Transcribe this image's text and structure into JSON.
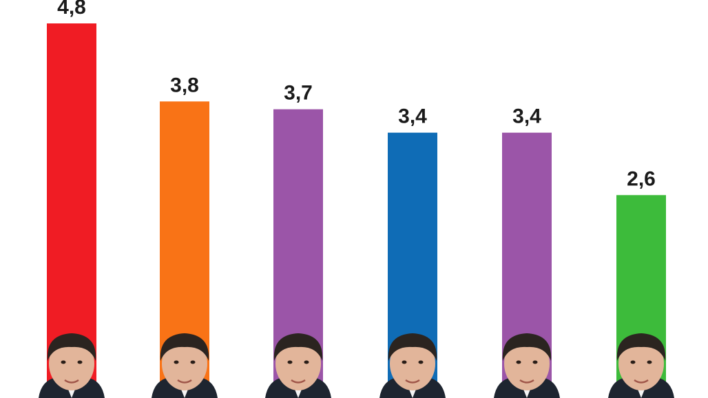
{
  "chart_data": {
    "type": "bar",
    "categories": [
      "",
      "",
      "",
      "",
      "",
      ""
    ],
    "values": [
      4.8,
      3.8,
      3.7,
      3.4,
      3.4,
      2.6
    ],
    "value_labels": [
      "4,8",
      "3,8",
      "3,7",
      "3,4",
      "3,4",
      "2,6"
    ],
    "colors": [
      "#f01c24",
      "#f97316",
      "#9b55a8",
      "#0f6cb6",
      "#9b55a8",
      "#3dbb3b"
    ],
    "title": "",
    "xlabel": "",
    "ylabel": "",
    "ylim": [
      0,
      4.8
    ],
    "grid": false,
    "legend": "none",
    "category_markers": [
      "portrait",
      "portrait",
      "portrait",
      "portrait",
      "portrait",
      "portrait"
    ]
  }
}
